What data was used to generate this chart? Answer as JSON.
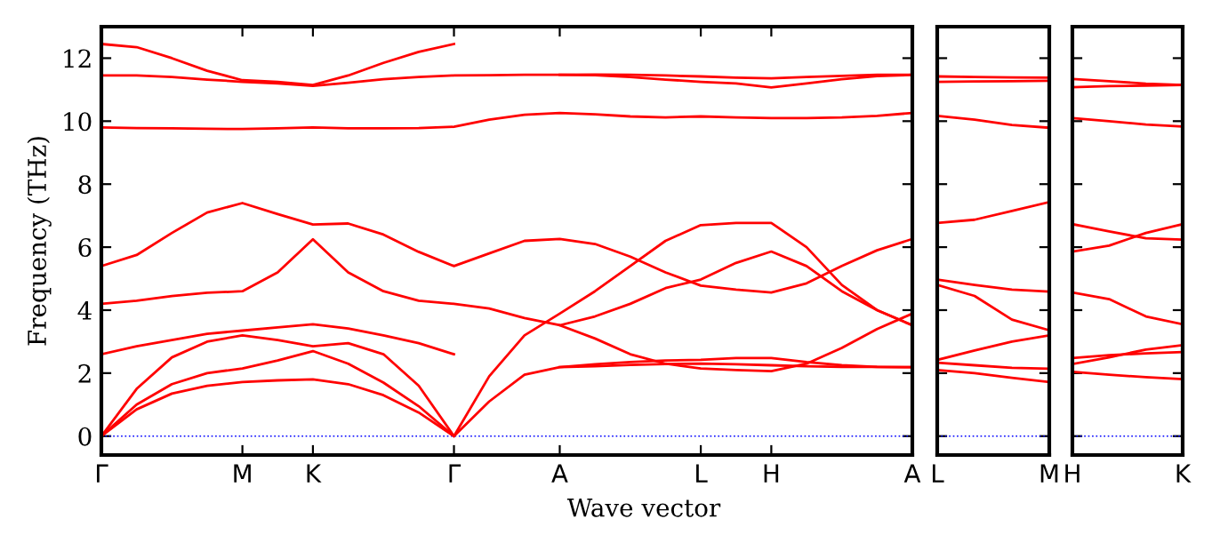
{
  "chart_data": [
    {
      "type": "line",
      "ylabel": "Frequency (THz)",
      "xlabel": "Wave vector",
      "ylim": [
        -0.6,
        13
      ],
      "categories": [
        "Γ",
        null,
        null,
        null,
        "M",
        null,
        "K",
        null,
        null,
        null,
        "Γ",
        null,
        null,
        "A",
        null,
        null,
        null,
        "L",
        null,
        "H",
        null,
        null,
        null,
        "A"
      ],
      "yticks": [
        0,
        2,
        4,
        6,
        8,
        10,
        12
      ],
      "ref_lines": [
        {
          "axis": "y",
          "value": 0,
          "color": "#0000ff",
          "line_style": "dotted"
        }
      ],
      "series": [
        {
          "color": "#ff0000",
          "values": [
            12.45,
            12.35,
            12.0,
            11.6,
            11.3,
            11.25,
            11.15,
            11.45,
            11.85,
            12.2,
            12.45,
            null,
            null,
            11.47,
            11.46,
            11.4,
            11.32,
            11.25,
            11.2,
            11.07,
            11.2,
            11.33,
            11.43,
            11.47
          ]
        },
        {
          "color": "#ff0000",
          "values": [
            11.45,
            11.45,
            11.4,
            11.32,
            11.25,
            11.2,
            11.12,
            11.22,
            11.33,
            11.4,
            11.45,
            11.46,
            11.47,
            11.47,
            11.48,
            11.47,
            11.45,
            11.42,
            11.38,
            11.36,
            11.4,
            11.44,
            11.47,
            11.47
          ]
        },
        {
          "color": "#ff0000",
          "values": [
            9.8,
            9.78,
            9.77,
            9.76,
            9.75,
            9.77,
            9.8,
            9.77,
            9.77,
            9.78,
            9.82,
            10.05,
            10.2,
            10.26,
            10.22,
            10.15,
            10.12,
            10.15,
            10.12,
            10.1,
            10.1,
            10.12,
            10.17,
            10.26
          ]
        },
        {
          "color": "#ff0000",
          "values": [
            5.4,
            5.75,
            6.45,
            7.1,
            7.4,
            7.05,
            6.72,
            6.75,
            6.4,
            5.85,
            5.4,
            5.8,
            6.2,
            6.26,
            6.1,
            5.7,
            5.2,
            4.78,
            4.65,
            4.56,
            4.85,
            5.4,
            5.9,
            6.26
          ]
        },
        {
          "color": "#ff0000",
          "values": [
            4.2,
            4.3,
            4.45,
            4.55,
            4.6,
            5.2,
            6.25,
            5.2,
            4.6,
            4.3,
            4.2,
            4.05,
            3.75,
            3.52,
            3.8,
            4.2,
            4.7,
            4.97,
            5.5,
            5.86,
            5.4,
            4.6,
            4.0,
            3.52
          ]
        },
        {
          "color": "#ff0000",
          "values": [
            2.6,
            2.85,
            3.05,
            3.25,
            3.35,
            3.45,
            3.55,
            3.42,
            3.2,
            2.95,
            2.6,
            null,
            null,
            3.52,
            3.1,
            2.6,
            2.3,
            2.15,
            2.1,
            2.06,
            2.3,
            2.8,
            3.4,
            3.89
          ]
        },
        {
          "color": "#ff0000",
          "values": [
            0,
            1.5,
            2.5,
            3.0,
            3.2,
            3.05,
            2.85,
            2.95,
            2.6,
            1.6,
            0,
            1.9,
            3.2,
            3.89,
            4.6,
            5.4,
            6.2,
            6.7,
            6.77,
            6.77,
            6.0,
            4.8,
            4.0,
            3.52
          ]
        },
        {
          "color": "#ff0000",
          "values": [
            0,
            1.0,
            1.65,
            2.0,
            2.15,
            2.4,
            2.7,
            2.3,
            1.7,
            0.95,
            0,
            null,
            null,
            2.19,
            2.28,
            2.35,
            2.4,
            2.42,
            2.48,
            2.48,
            2.35,
            2.25,
            2.2,
            2.19
          ]
        },
        {
          "color": "#ff0000",
          "values": [
            0,
            0.85,
            1.35,
            1.6,
            1.72,
            1.77,
            1.8,
            1.65,
            1.3,
            0.75,
            0,
            1.1,
            1.95,
            2.19,
            2.22,
            2.26,
            2.29,
            2.3,
            2.28,
            2.25,
            2.22,
            2.2,
            2.2,
            2.19
          ]
        }
      ]
    },
    {
      "type": "line",
      "ylim": [
        -0.6,
        13
      ],
      "categories": [
        "L",
        null,
        null,
        "M"
      ],
      "yticks": [
        0,
        2,
        4,
        6,
        8,
        10,
        12
      ],
      "tick_labels": "x",
      "ref_lines": [
        {
          "axis": "y",
          "value": 0,
          "color": "#0000ff",
          "line_style": "dotted"
        }
      ],
      "series": [
        {
          "color": "#ff0000",
          "values": [
            11.42,
            11.4,
            11.39,
            11.38
          ]
        },
        {
          "color": "#ff0000",
          "values": [
            11.25,
            11.26,
            11.27,
            11.28
          ]
        },
        {
          "color": "#ff0000",
          "values": [
            10.17,
            10.05,
            9.88,
            9.79
          ]
        },
        {
          "color": "#ff0000",
          "values": [
            6.77,
            6.87,
            7.15,
            7.43
          ]
        },
        {
          "color": "#ff0000",
          "values": [
            4.97,
            4.8,
            4.65,
            4.59
          ]
        },
        {
          "color": "#ff0000",
          "values": [
            4.8,
            4.45,
            3.7,
            3.36
          ]
        },
        {
          "color": "#ff0000",
          "values": [
            2.42,
            2.72,
            3.0,
            3.2
          ]
        },
        {
          "color": "#ff0000",
          "values": [
            2.33,
            2.25,
            2.17,
            2.14
          ]
        },
        {
          "color": "#ff0000",
          "values": [
            2.1,
            2.0,
            1.85,
            1.72
          ]
        }
      ]
    },
    {
      "type": "line",
      "ylim": [
        -0.6,
        13
      ],
      "categories": [
        "H",
        null,
        null,
        "K"
      ],
      "yticks": [
        0,
        2,
        4,
        6,
        8,
        10,
        12
      ],
      "tick_labels": "x",
      "ref_lines": [
        {
          "axis": "y",
          "value": 0,
          "color": "#0000ff",
          "line_style": "dotted"
        }
      ],
      "series": [
        {
          "color": "#ff0000",
          "values": [
            11.34,
            11.27,
            11.19,
            11.15
          ]
        },
        {
          "color": "#ff0000",
          "values": [
            11.08,
            11.11,
            11.13,
            11.15
          ]
        },
        {
          "color": "#ff0000",
          "values": [
            10.1,
            10.0,
            9.89,
            9.83
          ]
        },
        {
          "color": "#ff0000",
          "values": [
            6.73,
            6.5,
            6.28,
            6.24
          ]
        },
        {
          "color": "#ff0000",
          "values": [
            5.86,
            6.05,
            6.45,
            6.73
          ]
        },
        {
          "color": "#ff0000",
          "values": [
            4.56,
            4.35,
            3.8,
            3.55
          ]
        },
        {
          "color": "#ff0000",
          "values": [
            2.48,
            2.57,
            2.63,
            2.67
          ]
        },
        {
          "color": "#ff0000",
          "values": [
            2.29,
            2.5,
            2.75,
            2.89
          ]
        },
        {
          "color": "#ff0000",
          "values": [
            2.04,
            1.95,
            1.87,
            1.81
          ]
        }
      ]
    }
  ]
}
